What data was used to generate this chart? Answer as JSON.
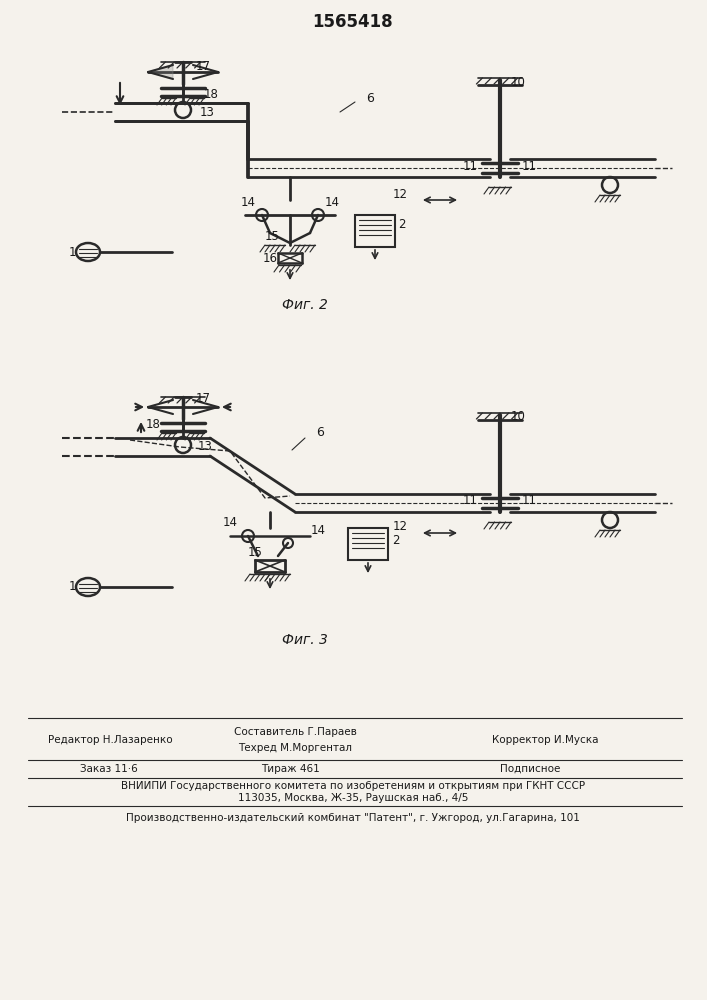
{
  "patent_number": "1565418",
  "fig2_caption": "Фиг. 2",
  "fig3_caption": "Фиг. 3",
  "footer_line1_col1": "Редактор Н.Лазаренко",
  "footer_line1_col2a": "Составитель Г.Параев",
  "footer_line1_col2b": "Техред М.Моргентал",
  "footer_line1_col3": "Корректор И.Муска",
  "footer_line2_col1": "Заказ 11·6",
  "footer_line2_col2": "Тираж 461",
  "footer_line2_col3": "Подписное",
  "footer_vniiipi": "ВНИИПИ Государственного комитета по изобретениям и открытиям при ГКНТ СССР",
  "footer_address": "113035, Москва, Ж-35, Раушская наб., 4/5",
  "footer_factory": "Производственно-издательский комбинат \"Патент\", г. Ужгород, ул.Гагарина, 101",
  "bg_color": "#f5f2ec",
  "line_color": "#2a2a2a",
  "text_color": "#1a1a1a"
}
